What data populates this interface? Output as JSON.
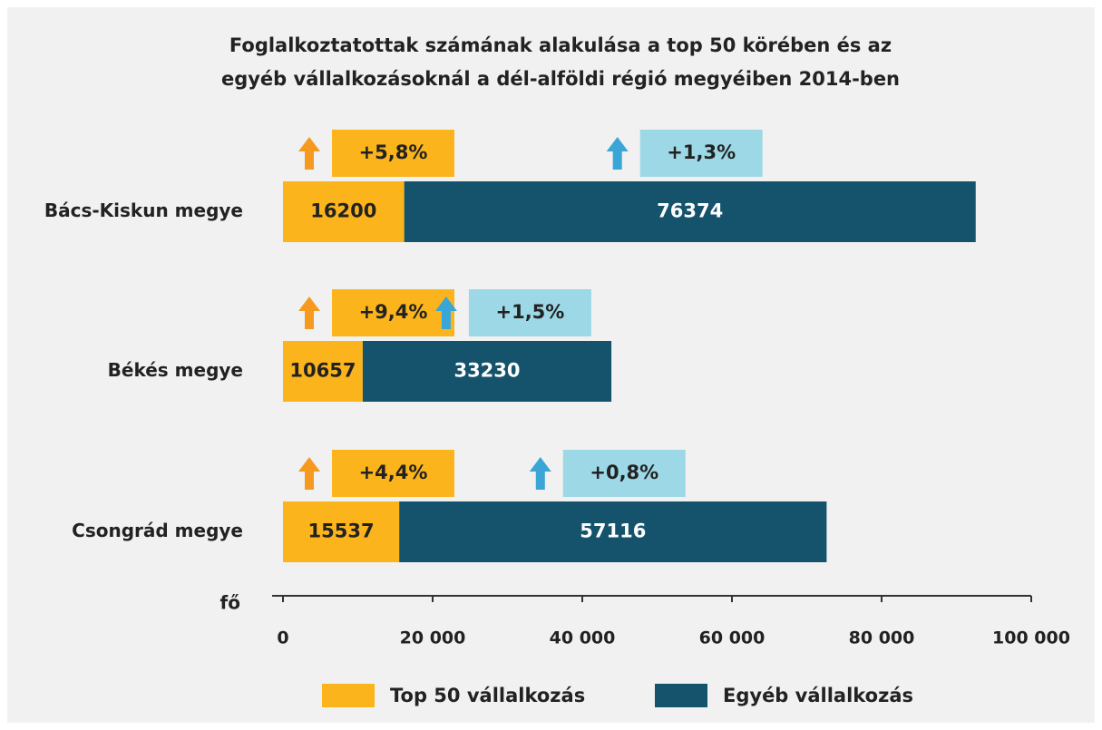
{
  "chart_data": {
    "type": "stacked_barh",
    "title": [
      "Foglalkoztatottak számának alakulása a top 50 körében és az",
      "egyéb vállalkozásoknál a dél-alföldi régió megyéiben 2014-ben"
    ],
    "x_label": "fő",
    "categories": [
      "Bács-Kiskun megye",
      "Békés megye",
      "Csongrád megye"
    ],
    "series": [
      {
        "name": "Top 50 vállalkozás",
        "color": "#fbb41c",
        "values": [
          16200,
          10657,
          15537
        ],
        "changes": [
          "+5,8%",
          "+9,4%",
          "+4,4%"
        ],
        "change_color": "#fbb41c"
      },
      {
        "name": "Egyéb vállalkozás",
        "color": "#14536b",
        "values": [
          76374,
          33230,
          57116
        ],
        "changes": [
          "+1,3%",
          "+1,5%",
          "+0,8%"
        ],
        "change_color": "#9dd8e6"
      }
    ],
    "xlim": [
      0,
      100000
    ],
    "xticks": [
      0,
      {
        "value": 20000,
        "label": "20 000"
      },
      {
        "value": 40000,
        "label": "40 000"
      },
      {
        "value": 60000,
        "label": "60 000"
      },
      {
        "value": 80000,
        "label": "80 000"
      },
      {
        "value": 100000,
        "label": "100 000"
      }
    ],
    "legend": "bottom"
  }
}
